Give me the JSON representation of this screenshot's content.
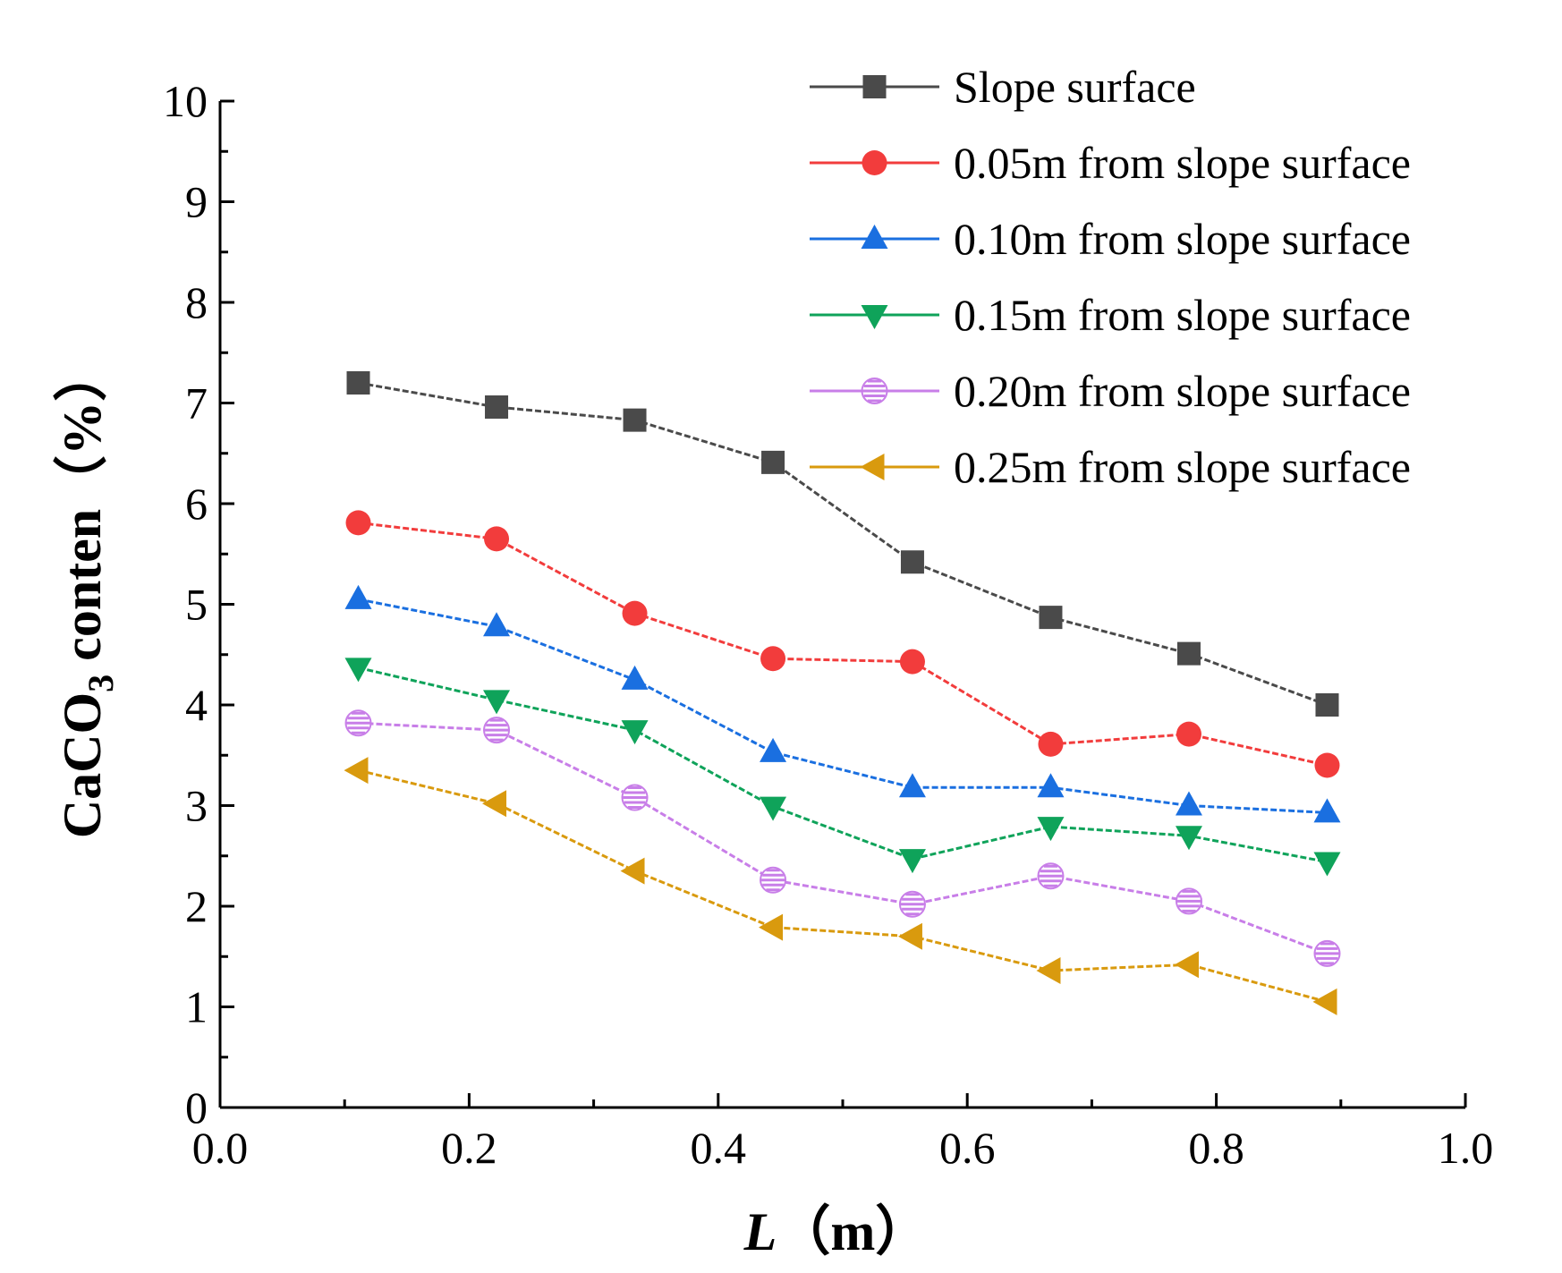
{
  "chart_data": {
    "type": "line",
    "x": [
      0.111,
      0.222,
      0.333,
      0.444,
      0.556,
      0.667,
      0.778,
      0.889
    ],
    "series": [
      {
        "name": "Slope surface",
        "color": "#4a4a4a",
        "marker": "square",
        "values": [
          7.2,
          6.96,
          6.83,
          6.41,
          5.42,
          4.87,
          4.51,
          4.0
        ]
      },
      {
        "name": "0.05m from slope surface",
        "color": "#f23c3c",
        "marker": "circle",
        "values": [
          5.81,
          5.65,
          4.91,
          4.46,
          4.43,
          3.61,
          3.71,
          3.4
        ]
      },
      {
        "name": "0.10m from slope surface",
        "color": "#1a6fe0",
        "marker": "triangle-up",
        "values": [
          5.05,
          4.78,
          4.25,
          3.53,
          3.18,
          3.18,
          3.0,
          2.93
        ]
      },
      {
        "name": "0.15m from slope surface",
        "color": "#0fa35a",
        "marker": "triangle-down",
        "values": [
          4.37,
          4.05,
          3.75,
          2.99,
          2.47,
          2.79,
          2.7,
          2.44
        ]
      },
      {
        "name": "0.20m from slope surface",
        "color": "#c87ee8",
        "marker": "circle-striped",
        "values": [
          3.82,
          3.75,
          3.08,
          2.26,
          2.02,
          2.3,
          2.05,
          1.53
        ]
      },
      {
        "name": "0.25m from slope surface",
        "color": "#d99a0e",
        "marker": "triangle-left",
        "values": [
          3.35,
          3.02,
          2.35,
          1.79,
          1.7,
          1.36,
          1.42,
          1.05
        ]
      }
    ],
    "xlabel": "L（m）",
    "xlabel_parts": {
      "italic": "L",
      "rest": "（m）"
    },
    "ylabel": "CaCO3 conten（%）",
    "ylabel_parts": {
      "a": "CaCO",
      "sub": "3",
      "b": " conten（%）"
    },
    "xlim": [
      0.0,
      1.0
    ],
    "ylim": [
      0,
      10
    ],
    "xticks": [
      "0.0",
      "0.2",
      "0.4",
      "0.6",
      "0.8",
      "1.0"
    ],
    "yticks": [
      "0",
      "1",
      "2",
      "3",
      "4",
      "5",
      "6",
      "7",
      "8",
      "9",
      "10"
    ],
    "grid": false,
    "legend_position": "top-right"
  }
}
